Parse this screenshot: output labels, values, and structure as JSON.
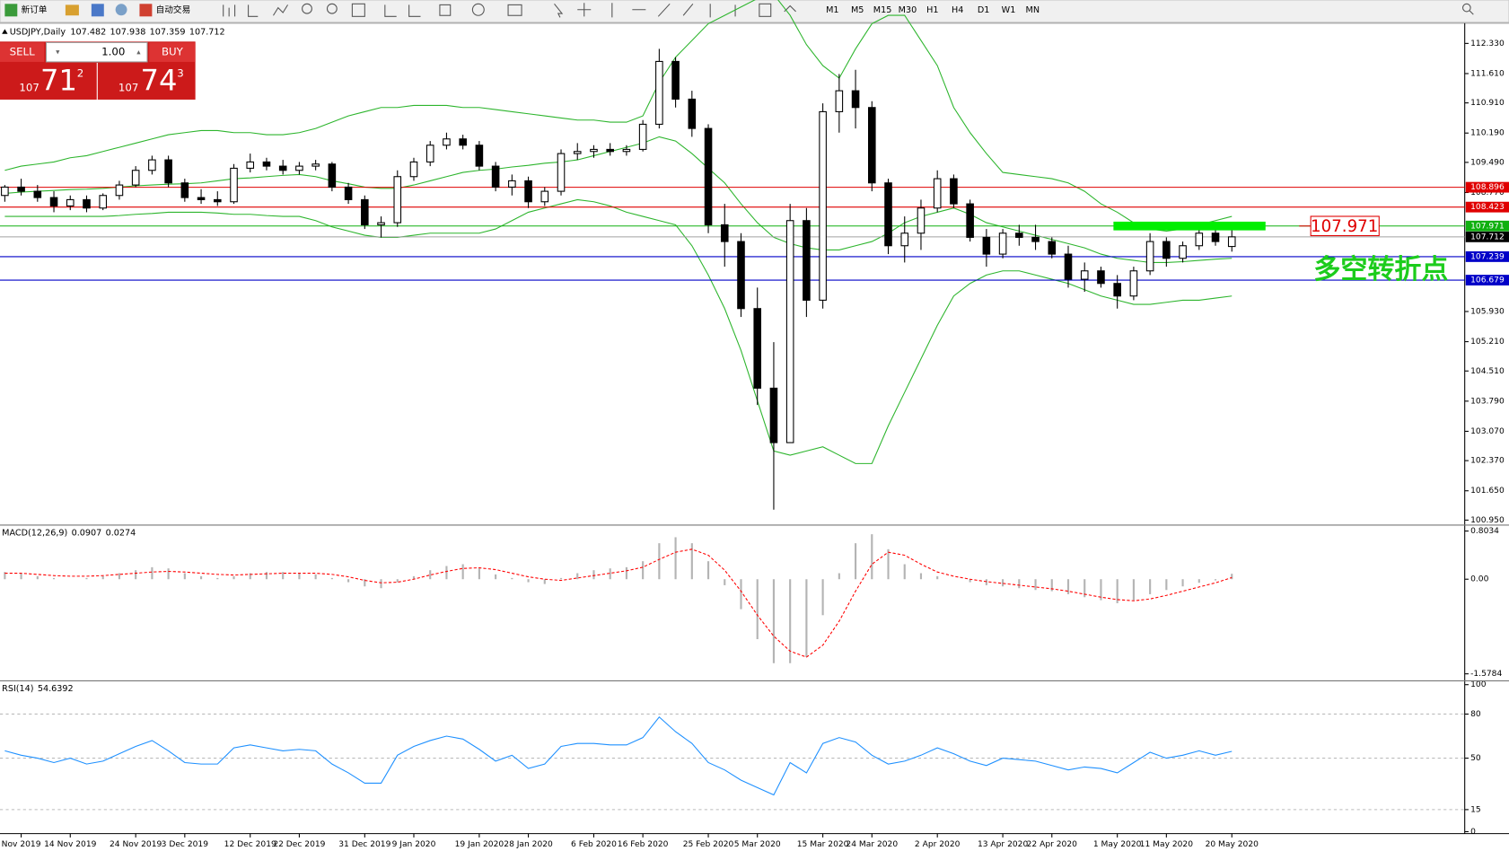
{
  "toolbar": {
    "new_order": "新订单",
    "auto_trading": "自动交易",
    "timeframes": [
      "M1",
      "M5",
      "M15",
      "M30",
      "H1",
      "H4",
      "D1",
      "W1",
      "MN"
    ]
  },
  "trade_panel": {
    "sell": "SELL",
    "buy": "BUY",
    "lots": "1.00",
    "bid": [
      "107",
      "71",
      "2"
    ],
    "ask": [
      "107",
      "74",
      "3"
    ]
  },
  "chart_data": [
    {
      "type": "candlestick",
      "title": "USDJPY,Daily",
      "categories": [
        null,
        "Nov 2019",
        null,
        null,
        "14 Nov 2019",
        null,
        null,
        null,
        "24 Nov 2019",
        null,
        null,
        "3 Dec 2019",
        null,
        null,
        null,
        "12 Dec 2019",
        null,
        null,
        "22 Dec 2019",
        null,
        null,
        null,
        "31 Dec 2019",
        null,
        null,
        "9 Jan 2020",
        null,
        null,
        null,
        "19 Jan 2020",
        null,
        null,
        "28 Jan 2020",
        null,
        null,
        null,
        "6 Feb 2020",
        null,
        null,
        "16 Feb 2020",
        null,
        null,
        null,
        "25 Feb 2020",
        null,
        null,
        "5 Mar 2020",
        null,
        null,
        null,
        "15 Mar 2020",
        null,
        null,
        "24 Mar 2020",
        null,
        null,
        null,
        "2 Apr 2020",
        null,
        null,
        null,
        "13 Apr 2020",
        null,
        null,
        "22 Apr 2020",
        null,
        null,
        null,
        "1 May 2020",
        null,
        null,
        "11 May 2020",
        null,
        null,
        null,
        "20 May 2020"
      ],
      "candles": [
        [
          108.7,
          108.95,
          108.55,
          108.9
        ],
        [
          108.9,
          109.1,
          108.7,
          108.8
        ],
        [
          108.8,
          108.95,
          108.55,
          108.65
        ],
        [
          108.65,
          108.8,
          108.3,
          108.45
        ],
        [
          108.45,
          108.7,
          108.35,
          108.6
        ],
        [
          108.6,
          108.7,
          108.3,
          108.4
        ],
        [
          108.4,
          108.75,
          108.35,
          108.7
        ],
        [
          108.7,
          109.05,
          108.6,
          108.95
        ],
        [
          108.95,
          109.4,
          108.9,
          109.3
        ],
        [
          109.3,
          109.65,
          109.2,
          109.55
        ],
        [
          109.55,
          109.65,
          108.9,
          109.0
        ],
        [
          109.0,
          109.1,
          108.55,
          108.65
        ],
        [
          108.65,
          108.85,
          108.5,
          108.6
        ],
        [
          108.6,
          108.8,
          108.45,
          108.55
        ],
        [
          108.55,
          109.45,
          108.5,
          109.35
        ],
        [
          109.35,
          109.7,
          109.25,
          109.5
        ],
        [
          109.5,
          109.6,
          109.3,
          109.4
        ],
        [
          109.4,
          109.55,
          109.2,
          109.3
        ],
        [
          109.3,
          109.5,
          109.2,
          109.4
        ],
        [
          109.4,
          109.55,
          109.3,
          109.45
        ],
        [
          109.45,
          109.5,
          108.8,
          108.9
        ],
        [
          108.9,
          109.0,
          108.5,
          108.6
        ],
        [
          108.6,
          108.7,
          107.9,
          108.0
        ],
        [
          108.0,
          108.2,
          107.7,
          108.05
        ],
        [
          108.05,
          109.3,
          107.95,
          109.15
        ],
        [
          109.15,
          109.6,
          109.05,
          109.5
        ],
        [
          109.5,
          110.0,
          109.4,
          109.9
        ],
        [
          109.9,
          110.2,
          109.8,
          110.05
        ],
        [
          110.05,
          110.15,
          109.8,
          109.9
        ],
        [
          109.9,
          110.0,
          109.3,
          109.4
        ],
        [
          109.4,
          109.5,
          108.8,
          108.9
        ],
        [
          108.9,
          109.2,
          108.7,
          109.05
        ],
        [
          109.05,
          109.15,
          108.4,
          108.55
        ],
        [
          108.55,
          108.9,
          108.45,
          108.8
        ],
        [
          108.8,
          109.8,
          108.7,
          109.7
        ],
        [
          109.7,
          109.95,
          109.55,
          109.75
        ],
        [
          109.75,
          109.9,
          109.6,
          109.8
        ],
        [
          109.8,
          109.95,
          109.65,
          109.75
        ],
        [
          109.75,
          109.9,
          109.65,
          109.8
        ],
        [
          109.8,
          110.5,
          109.75,
          110.4
        ],
        [
          110.4,
          112.2,
          110.3,
          111.9
        ],
        [
          111.9,
          112.0,
          110.8,
          111.0
        ],
        [
          111.0,
          111.2,
          110.1,
          110.3
        ],
        [
          110.3,
          110.4,
          107.8,
          108.0
        ],
        [
          108.0,
          108.5,
          107.0,
          107.6
        ],
        [
          107.6,
          107.8,
          105.8,
          106.0
        ],
        [
          106.0,
          106.5,
          103.7,
          104.1
        ],
        [
          104.1,
          105.2,
          101.2,
          102.8
        ],
        [
          102.8,
          108.5,
          102.8,
          108.1
        ],
        [
          108.1,
          108.4,
          105.8,
          106.2
        ],
        [
          106.2,
          110.9,
          106.0,
          110.7
        ],
        [
          110.7,
          111.6,
          110.2,
          111.2
        ],
        [
          111.2,
          111.7,
          110.3,
          110.8
        ],
        [
          110.8,
          110.95,
          108.8,
          109.0
        ],
        [
          109.0,
          109.1,
          107.3,
          107.5
        ],
        [
          107.5,
          108.2,
          107.1,
          107.8
        ],
        [
          107.8,
          108.6,
          107.4,
          108.4
        ],
        [
          108.4,
          109.3,
          108.3,
          109.1
        ],
        [
          109.1,
          109.2,
          108.4,
          108.5
        ],
        [
          108.5,
          108.6,
          107.6,
          107.7
        ],
        [
          107.7,
          107.9,
          107.0,
          107.3
        ],
        [
          107.3,
          107.9,
          107.2,
          107.8
        ],
        [
          107.8,
          108.0,
          107.5,
          107.7
        ],
        [
          107.7,
          108.0,
          107.4,
          107.6
        ],
        [
          107.6,
          107.7,
          107.2,
          107.3
        ],
        [
          107.3,
          107.5,
          106.5,
          106.7
        ],
        [
          106.7,
          107.1,
          106.4,
          106.9
        ],
        [
          106.9,
          107.0,
          106.5,
          106.6
        ],
        [
          106.6,
          106.8,
          106.0,
          106.3
        ],
        [
          106.3,
          107.0,
          106.2,
          106.9
        ],
        [
          106.9,
          107.8,
          106.8,
          107.6
        ],
        [
          107.6,
          107.7,
          107.0,
          107.2
        ],
        [
          107.2,
          107.6,
          107.1,
          107.5
        ],
        [
          107.5,
          107.9,
          107.4,
          107.8
        ],
        [
          107.8,
          107.95,
          107.5,
          107.6
        ],
        [
          107.482,
          107.938,
          107.359,
          107.712
        ]
      ],
      "bands": [
        {
          "color": "#2db52d",
          "values": [
            109.3,
            109.4,
            109.45,
            109.5,
            109.6,
            109.65,
            109.75,
            109.85,
            109.95,
            110.05,
            110.15,
            110.2,
            110.25,
            110.25,
            110.2,
            110.2,
            110.15,
            110.15,
            110.2,
            110.3,
            110.45,
            110.6,
            110.7,
            110.8,
            110.8,
            110.85,
            110.85,
            110.85,
            110.8,
            110.8,
            110.75,
            110.7,
            110.65,
            110.6,
            110.55,
            110.5,
            110.5,
            110.45,
            110.45,
            110.6,
            111.4,
            112.0,
            112.4,
            112.8,
            113.0,
            113.2,
            113.4,
            113.5,
            113.0,
            112.3,
            111.8,
            111.5,
            112.2,
            112.8,
            113.0,
            113.0,
            112.4,
            111.8,
            110.8,
            110.2,
            109.7,
            109.25,
            109.2,
            109.15,
            109.1,
            109.0,
            108.8,
            108.5,
            108.3,
            108.05,
            107.9,
            107.85,
            107.9,
            108.0,
            108.1,
            108.2
          ]
        },
        {
          "color": "#2db52d",
          "values": [
            108.75,
            108.78,
            108.8,
            108.82,
            108.84,
            108.85,
            108.87,
            108.9,
            108.93,
            108.95,
            108.97,
            108.98,
            109.0,
            109.05,
            109.1,
            109.12,
            109.15,
            109.18,
            109.2,
            109.15,
            109.05,
            108.98,
            108.9,
            108.87,
            108.87,
            108.95,
            109.05,
            109.15,
            109.25,
            109.3,
            109.33,
            109.38,
            109.42,
            109.47,
            109.5,
            109.55,
            109.65,
            109.75,
            109.85,
            109.95,
            110.1,
            110.0,
            109.7,
            109.35,
            109.0,
            108.5,
            108.05,
            107.7,
            107.55,
            107.45,
            107.4,
            107.4,
            107.5,
            107.6,
            107.8,
            108.05,
            108.2,
            108.3,
            108.4,
            108.25,
            108.05,
            107.95,
            107.85,
            107.75,
            107.65,
            107.55,
            107.45,
            107.3,
            107.2,
            107.15,
            107.1,
            107.1,
            107.12,
            107.15,
            107.18,
            107.2
          ]
        },
        {
          "color": "#2db52d",
          "values": [
            108.2,
            108.2,
            108.2,
            108.2,
            108.2,
            108.2,
            108.2,
            108.22,
            108.25,
            108.27,
            108.3,
            108.3,
            108.3,
            108.28,
            108.25,
            108.25,
            108.22,
            108.2,
            108.2,
            108.1,
            107.95,
            107.85,
            107.75,
            107.7,
            107.7,
            107.75,
            107.8,
            107.8,
            107.8,
            107.8,
            107.9,
            108.1,
            108.3,
            108.4,
            108.5,
            108.6,
            108.55,
            108.45,
            108.3,
            108.2,
            108.1,
            108.0,
            107.5,
            106.8,
            106.0,
            105.0,
            103.8,
            102.6,
            102.5,
            102.6,
            102.7,
            102.5,
            102.3,
            102.3,
            103.2,
            104.0,
            104.8,
            105.6,
            106.3,
            106.6,
            106.8,
            106.9,
            106.9,
            106.8,
            106.7,
            106.6,
            106.45,
            106.3,
            106.2,
            106.1,
            106.1,
            106.15,
            106.2,
            106.2,
            106.25,
            106.3
          ]
        }
      ],
      "hlines": [
        {
          "value": 108.896,
          "color": "#e00000"
        },
        {
          "value": 108.423,
          "color": "#e00000"
        },
        {
          "value": 107.971,
          "color": "#10b010"
        },
        {
          "value": 107.239,
          "color": "#0000c8"
        },
        {
          "value": 106.679,
          "color": "#0000c8"
        }
      ],
      "current_color": "#a0a0a0",
      "marker": {
        "color": "#00ee00"
      },
      "annotation": {
        "text": "多空转折点",
        "color": "#1ccc1c",
        "box_color": "#e00000"
      },
      "ylim": [
        100.9,
        112.72
      ],
      "yticks": [
        {
          "value": 112.33,
          "label": "112.330"
        },
        {
          "value": 111.61,
          "label": "111.610"
        },
        {
          "value": 110.91,
          "label": "110.910"
        },
        {
          "value": 110.19,
          "label": "110.190"
        },
        {
          "value": 109.49,
          "label": "109.490"
        },
        {
          "value": 108.77,
          "label": "108.770"
        },
        {
          "value": 105.93,
          "label": "105.930"
        },
        {
          "value": 105.21,
          "label": "105.210"
        },
        {
          "value": 104.51,
          "label": "104.510"
        },
        {
          "value": 103.79,
          "label": "103.790"
        },
        {
          "value": 103.07,
          "label": "103.070"
        },
        {
          "value": 102.37,
          "label": "102.370"
        },
        {
          "value": 101.65,
          "label": "101.650"
        },
        {
          "value": 100.95,
          "label": "100.950"
        }
      ]
    },
    {
      "type": "macd",
      "title": "MACD(12,26,9)",
      "series": [
        {
          "kind": "bar",
          "color": "#b4b4b4",
          "values": [
            0.12,
            0.1,
            0.05,
            0.02,
            0.0,
            0.02,
            0.05,
            0.1,
            0.15,
            0.2,
            0.18,
            0.1,
            0.05,
            0.02,
            0.05,
            0.1,
            0.12,
            0.12,
            0.1,
            0.08,
            0.02,
            -0.05,
            -0.12,
            -0.15,
            -0.05,
            0.05,
            0.15,
            0.22,
            0.25,
            0.18,
            0.08,
            0.02,
            -0.05,
            -0.08,
            0.02,
            0.1,
            0.15,
            0.18,
            0.2,
            0.3,
            0.6,
            0.7,
            0.6,
            0.3,
            -0.1,
            -0.5,
            -1.0,
            -1.4,
            -1.4,
            -1.3,
            -0.6,
            0.1,
            0.6,
            0.75,
            0.5,
            0.25,
            0.1,
            0.05,
            0.0,
            -0.05,
            -0.1,
            -0.12,
            -0.15,
            -0.18,
            -0.2,
            -0.25,
            -0.3,
            -0.35,
            -0.4,
            -0.35,
            -0.25,
            -0.18,
            -0.12,
            -0.06,
            -0.02,
            0.0907
          ]
        },
        {
          "kind": "line",
          "dashed": true,
          "color": "#ff0000",
          "values": [
            0.1,
            0.1,
            0.08,
            0.06,
            0.05,
            0.05,
            0.06,
            0.08,
            0.1,
            0.12,
            0.13,
            0.12,
            0.1,
            0.08,
            0.07,
            0.08,
            0.09,
            0.1,
            0.1,
            0.1,
            0.08,
            0.04,
            -0.02,
            -0.06,
            -0.05,
            0.0,
            0.07,
            0.13,
            0.18,
            0.19,
            0.16,
            0.1,
            0.04,
            0.0,
            -0.02,
            0.02,
            0.06,
            0.1,
            0.14,
            0.2,
            0.33,
            0.45,
            0.5,
            0.4,
            0.15,
            -0.2,
            -0.6,
            -0.95,
            -1.2,
            -1.3,
            -1.1,
            -0.7,
            -0.2,
            0.25,
            0.45,
            0.4,
            0.25,
            0.12,
            0.05,
            0.0,
            -0.04,
            -0.07,
            -0.1,
            -0.13,
            -0.16,
            -0.2,
            -0.25,
            -0.3,
            -0.34,
            -0.36,
            -0.33,
            -0.27,
            -0.2,
            -0.13,
            -0.06,
            0.0274
          ]
        }
      ],
      "ylim": [
        -1.63,
        0.87
      ],
      "yticks": [
        0.8034,
        {
          "value": 0,
          "label": "0.00"
        },
        -1.5784
      ]
    },
    {
      "type": "line",
      "title": "RSI(14)",
      "series": [
        {
          "color": "#1e90ff",
          "values": [
            55,
            52,
            50,
            47,
            50,
            46,
            48,
            53,
            58,
            62,
            55,
            47,
            46,
            46,
            57,
            59,
            57,
            55,
            56,
            55,
            46,
            40,
            33,
            33,
            52,
            58,
            62,
            65,
            63,
            56,
            48,
            52,
            43,
            46,
            58,
            60,
            60,
            59,
            59,
            64,
            78,
            68,
            60,
            47,
            42,
            35,
            30,
            25,
            47,
            40,
            60,
            64,
            61,
            52,
            46,
            48,
            52,
            57,
            53,
            48,
            45,
            50,
            49,
            48,
            45,
            42,
            44,
            43,
            40,
            47,
            54,
            50,
            52,
            55,
            52,
            54.6392
          ]
        }
      ],
      "ylim": [
        0,
        100
      ],
      "yticks": [
        100,
        80,
        50,
        15,
        0
      ]
    }
  ]
}
